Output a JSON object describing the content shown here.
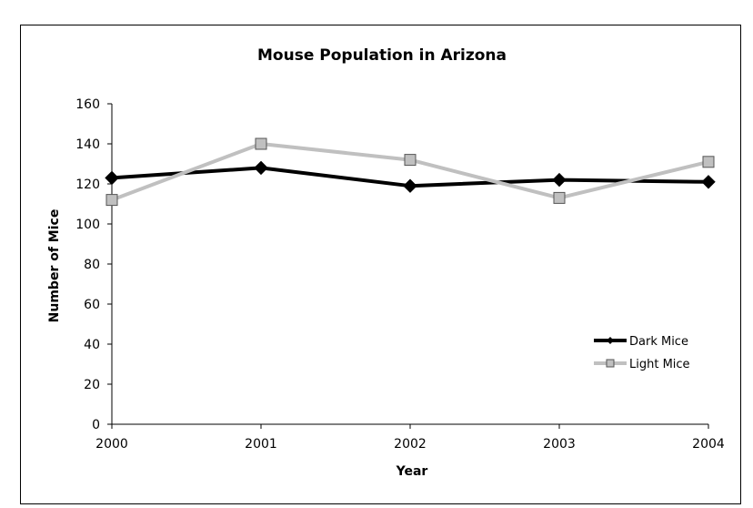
{
  "chart_data": {
    "type": "line",
    "title": "Mouse Population in Arizona",
    "xlabel": "Year",
    "ylabel": "Number of Mice",
    "categories": [
      "2000",
      "2001",
      "2002",
      "2003",
      "2004"
    ],
    "ylim": [
      0,
      160
    ],
    "yticks": [
      "0",
      "20",
      "40",
      "60",
      "80",
      "100",
      "120",
      "140",
      "160"
    ],
    "grid": false,
    "legend_position": "right",
    "series": [
      {
        "name": "Dark Mice",
        "values": [
          123,
          128,
          119,
          122,
          121
        ],
        "color": "#000000",
        "marker": "diamond"
      },
      {
        "name": "Light Mice",
        "values": [
          112,
          140,
          132,
          113,
          131
        ],
        "color": "#c0c0c0",
        "marker": "square"
      }
    ]
  }
}
